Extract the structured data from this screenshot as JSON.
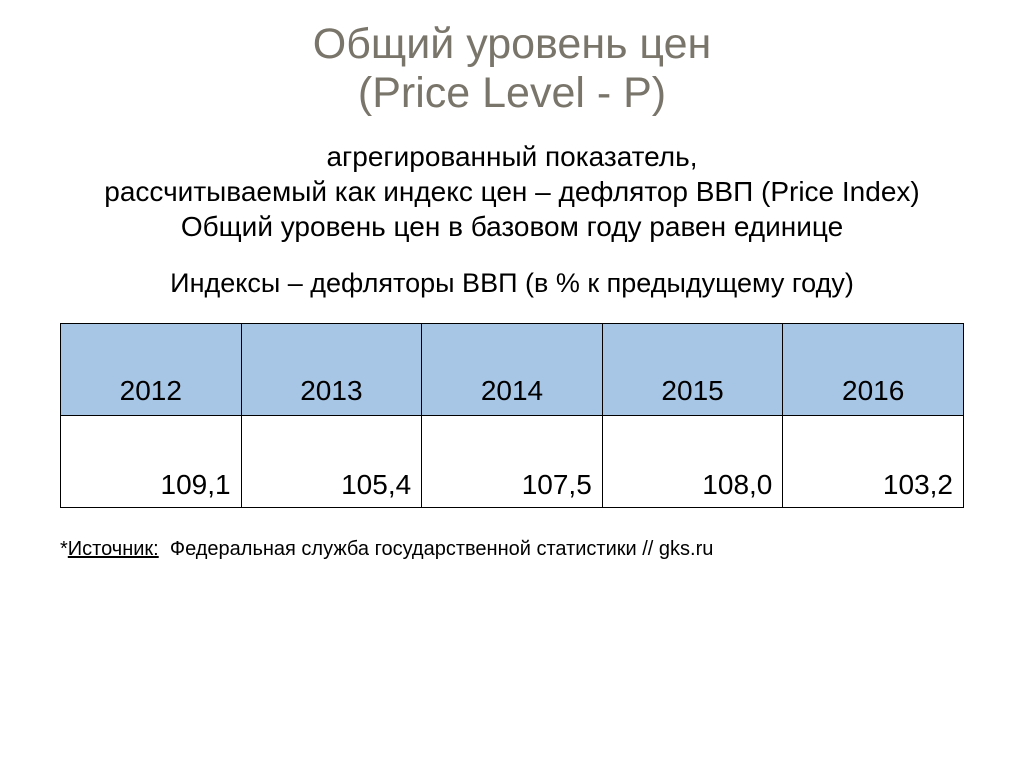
{
  "title": {
    "line1": "Общий уровень цен",
    "line2": "(Price Level - P)"
  },
  "body": {
    "line1": "агрегированный показатель,",
    "line2": "рассчитываемый как индекс цен – дефлятор ВВП (Price Index)",
    "line3": "Общий уровень цен в базовом году равен единице"
  },
  "subhead": "Индексы – дефляторы ВВП (в % к предыдущему году)",
  "table": {
    "header_bg": "#a7c6e6",
    "border_color": "#000000",
    "cell_fontsize": 28,
    "columns": [
      "2012",
      "2013",
      "2014",
      "2015",
      "2016"
    ],
    "rows": [
      [
        "109,1",
        "105,4",
        "107,5",
        "108,0",
        "103,2"
      ]
    ]
  },
  "footnote": {
    "star": "*",
    "label": "Источник:",
    "text": "Федеральная служба государственной статистики // gks.ru"
  },
  "colors": {
    "title_color": "#7a756b",
    "text_color": "#000000",
    "background": "#ffffff"
  }
}
